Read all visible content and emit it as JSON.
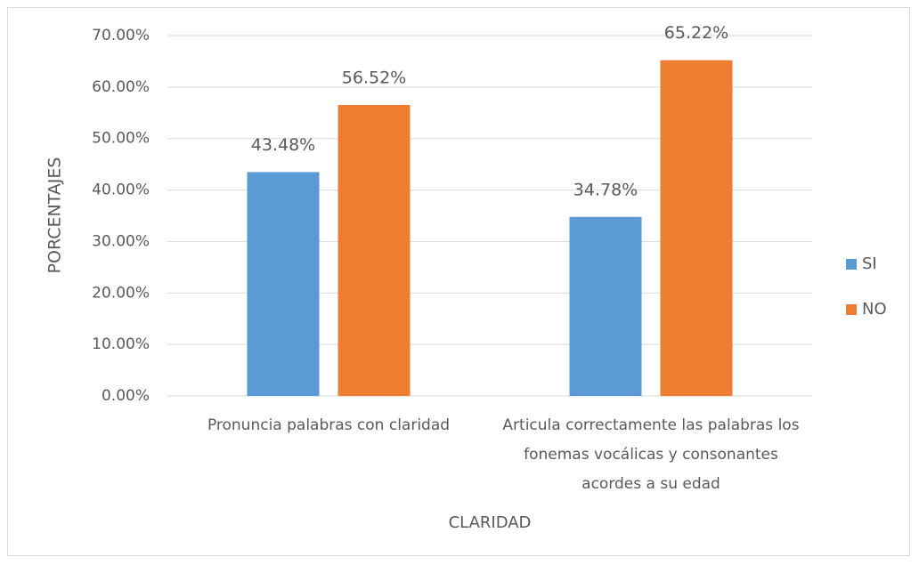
{
  "chart_data": {
    "type": "bar",
    "x_label": "CLARIDAD",
    "y_label": "PORCENTAJES",
    "categories": [
      "Pronuncia palabras con claridad",
      "Articula correctamente las palabras los fonemas vocálicas y consonantes acordes a su edad"
    ],
    "series": [
      {
        "name": "SI",
        "color": "#5b9bd5",
        "values": [
          43.48,
          34.78
        ],
        "value_labels": [
          "43.48%",
          "34.78%"
        ]
      },
      {
        "name": "NO",
        "color": "#ed7d31",
        "values": [
          56.52,
          65.22
        ],
        "value_labels": [
          "56.52%",
          "65.22%"
        ]
      }
    ],
    "ylim": [
      0,
      70
    ],
    "yticks": [
      {
        "value": 0,
        "label": "0.00%"
      },
      {
        "value": 10,
        "label": "10.00%"
      },
      {
        "value": 20,
        "label": "20.00%"
      },
      {
        "value": 30,
        "label": "30.00%"
      },
      {
        "value": 40,
        "label": "40.00%"
      },
      {
        "value": 50,
        "label": "50.00%"
      },
      {
        "value": 60,
        "label": "60.00%"
      },
      {
        "value": 70,
        "label": "70.00%"
      }
    ],
    "grid": true,
    "legend": "right"
  }
}
